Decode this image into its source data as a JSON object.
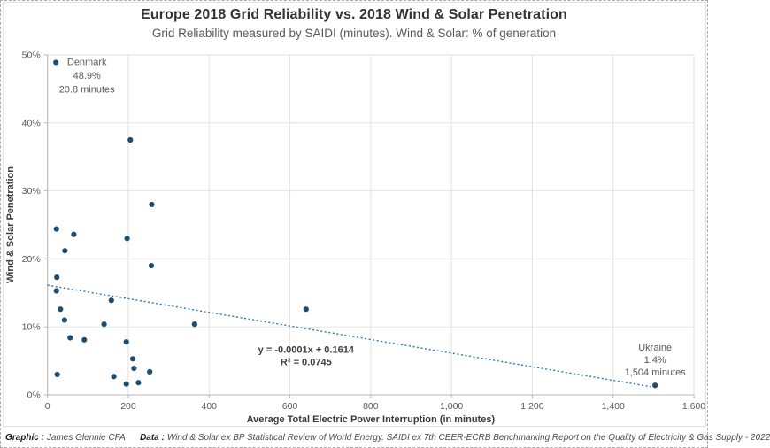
{
  "header": {
    "title": "Europe 2018 Grid Reliability vs. 2018 Wind & Solar Penetration",
    "subtitle": "Grid Reliability measured by SAIDI (minutes). Wind & Solar: % of generation"
  },
  "chart_data": {
    "type": "scatter",
    "title": "Europe 2018 Grid Reliability vs. 2018 Wind & Solar Penetration",
    "subtitle": "Grid Reliability measured by SAIDI (minutes). Wind & Solar: % of generation",
    "xlabel": "Average Total Electric Power Interruption (in minutes)",
    "ylabel": "Wind & Solar Penetration",
    "xlim": [
      0,
      1600
    ],
    "ylim_pct": [
      0,
      50
    ],
    "grid": true,
    "legend": "none",
    "xticks": {
      "values": [
        0,
        200,
        400,
        600,
        800,
        1000,
        1200,
        1400,
        1600
      ],
      "labels": [
        "0",
        "200",
        "400",
        "600",
        "800",
        "1,000",
        "1,200",
        "1,400",
        "1,600"
      ]
    },
    "yticks": {
      "values": [
        0,
        10,
        20,
        30,
        40,
        50
      ],
      "labels": [
        "0%",
        "10%",
        "20%",
        "30%",
        "40%",
        "50%"
      ]
    },
    "point_color": "#1d4e70",
    "points": [
      [
        20.8,
        48.9
      ],
      [
        205,
        37.5
      ],
      [
        258,
        28.0
      ],
      [
        22,
        24.4
      ],
      [
        65,
        23.6
      ],
      [
        197,
        23.0
      ],
      [
        43,
        21.2
      ],
      [
        257,
        19.0
      ],
      [
        23,
        17.3
      ],
      [
        22,
        15.3
      ],
      [
        158,
        13.9
      ],
      [
        32,
        12.6
      ],
      [
        640,
        12.6
      ],
      [
        42,
        11.0
      ],
      [
        140,
        10.4
      ],
      [
        364,
        10.4
      ],
      [
        56,
        8.4
      ],
      [
        91,
        8.1
      ],
      [
        195,
        7.8
      ],
      [
        211,
        5.3
      ],
      [
        214,
        3.9
      ],
      [
        253,
        3.4
      ],
      [
        24,
        3.0
      ],
      [
        164,
        2.7
      ],
      [
        225,
        1.8
      ],
      [
        195,
        1.6
      ],
      [
        1504,
        1.4
      ]
    ],
    "trendline": {
      "intercept_pct": 16.14,
      "slope_pct_per_min": -0.01,
      "x_start": 0,
      "x_end": 1504,
      "color": "#2e75b6",
      "style": "dotted",
      "equation_line1": "y = -0.0001x + 0.1614",
      "equation_line2": "R² = 0.0745",
      "label_x": 640,
      "label_y_pct": 6.2
    },
    "annotations": [
      {
        "name": "Denmark",
        "point": [
          20.8,
          48.9
        ],
        "lines": [
          "Denmark",
          "48.9%",
          "20.8 minutes"
        ],
        "placement": "right-of-point"
      },
      {
        "name": "Ukraine",
        "point": [
          1504,
          1.4
        ],
        "lines": [
          "Ukraine",
          "1.4%",
          "1,504 minutes"
        ],
        "placement": "above-point"
      }
    ]
  },
  "footer": {
    "graphic_label": "Graphic :",
    "graphic_value": "James Glennie CFA",
    "data_label": "Data :",
    "data_value": "Wind & Solar ex BP Statistical Review of World Energy. SAIDI ex 7th CEER-ECRB Benchmarking Report on the Quality of Electricity & Gas Supply - 2022"
  }
}
